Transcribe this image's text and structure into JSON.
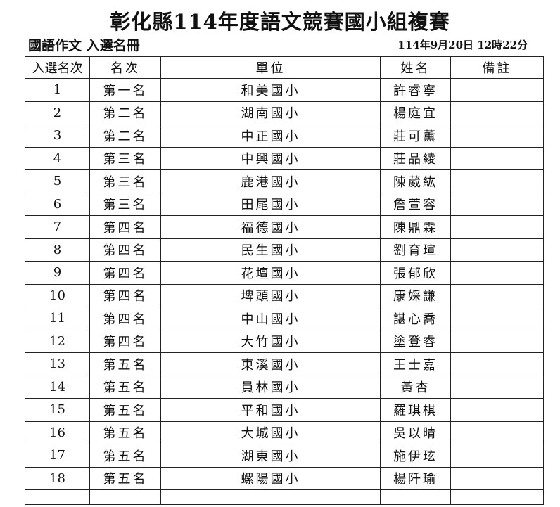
{
  "title": "彰化縣114年度語文競賽國小組複賽",
  "subtitle": "國語作文 入選名冊",
  "timestamp": "114年9月20日 12時22分",
  "columns": [
    "入選名次",
    "名次",
    "單位",
    "姓名",
    "備註"
  ],
  "rows": [
    {
      "no": "1",
      "rank": "第一名",
      "school": "和美國小",
      "name": "許睿寧",
      "note": ""
    },
    {
      "no": "2",
      "rank": "第二名",
      "school": "湖南國小",
      "name": "楊庭宜",
      "note": ""
    },
    {
      "no": "3",
      "rank": "第二名",
      "school": "中正國小",
      "name": "莊可薰",
      "note": ""
    },
    {
      "no": "4",
      "rank": "第三名",
      "school": "中興國小",
      "name": "莊品綾",
      "note": ""
    },
    {
      "no": "5",
      "rank": "第三名",
      "school": "鹿港國小",
      "name": "陳葳紘",
      "note": ""
    },
    {
      "no": "6",
      "rank": "第三名",
      "school": "田尾國小",
      "name": "詹萱容",
      "note": ""
    },
    {
      "no": "7",
      "rank": "第四名",
      "school": "福德國小",
      "name": "陳鼎霖",
      "note": ""
    },
    {
      "no": "8",
      "rank": "第四名",
      "school": "民生國小",
      "name": "劉育瑄",
      "note": ""
    },
    {
      "no": "9",
      "rank": "第四名",
      "school": "花壇國小",
      "name": "張郁欣",
      "note": ""
    },
    {
      "no": "10",
      "rank": "第四名",
      "school": "埤頭國小",
      "name": "康婇謙",
      "note": ""
    },
    {
      "no": "11",
      "rank": "第四名",
      "school": "中山國小",
      "name": "諶心喬",
      "note": ""
    },
    {
      "no": "12",
      "rank": "第四名",
      "school": "大竹國小",
      "name": "塗登睿",
      "note": ""
    },
    {
      "no": "13",
      "rank": "第五名",
      "school": "東溪國小",
      "name": "王士嘉",
      "note": ""
    },
    {
      "no": "14",
      "rank": "第五名",
      "school": "員林國小",
      "name": "黃杏",
      "note": ""
    },
    {
      "no": "15",
      "rank": "第五名",
      "school": "平和國小",
      "name": "羅琪棋",
      "note": ""
    },
    {
      "no": "16",
      "rank": "第五名",
      "school": "大城國小",
      "name": "吳以晴",
      "note": ""
    },
    {
      "no": "17",
      "rank": "第五名",
      "school": "湖東國小",
      "name": "施伊玹",
      "note": ""
    },
    {
      "no": "18",
      "rank": "第五名",
      "school": "螺陽國小",
      "name": "楊阡瑜",
      "note": ""
    }
  ]
}
